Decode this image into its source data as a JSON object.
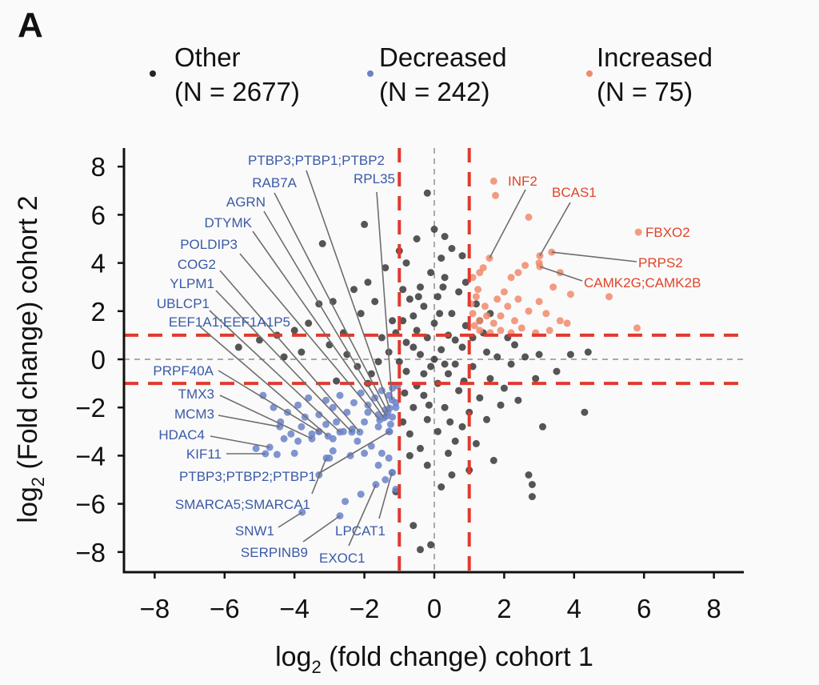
{
  "panel_label": "A",
  "chart_data": {
    "type": "scatter",
    "xlabel_main": "log",
    "xlabel_sub": "2",
    "xlabel_rest": " (fold change) cohort 1",
    "ylabel_main": "log",
    "ylabel_sub": "2",
    "ylabel_rest": " (Fold change) cohort 2",
    "xlim": [
      -9,
      9
    ],
    "ylim": [
      -8.8,
      8.8
    ],
    "xticks": [
      -8,
      -6,
      -4,
      -2,
      0,
      2,
      4,
      6,
      8
    ],
    "yticks": [
      -8,
      -6,
      -4,
      -2,
      0,
      2,
      4,
      6,
      8
    ],
    "xtick_labels": [
      "−8",
      "−6",
      "−4",
      "−2",
      "0",
      "2",
      "4",
      "6",
      "8"
    ],
    "ytick_labels": [
      "−8",
      "−6",
      "−4",
      "−2",
      "0",
      "2",
      "4",
      "6",
      "8"
    ],
    "grid": false,
    "thresholds": {
      "x": [
        -1,
        1
      ],
      "y": [
        -1,
        1
      ],
      "color": "#e03a2e"
    },
    "zero_lines_color": "#aaaaaa",
    "legend_placement": "top",
    "series": [
      {
        "name": "Other",
        "count_label": "(N = 2677)",
        "color": "#262626",
        "points": [
          [
            -0.2,
            6.9
          ],
          [
            -2.0,
            5.6
          ],
          [
            -3.2,
            4.8
          ],
          [
            0,
            5.4
          ],
          [
            0.3,
            5.1
          ],
          [
            -0.5,
            5.0
          ],
          [
            0.5,
            4.6
          ],
          [
            -1.0,
            4.5
          ],
          [
            -0.8,
            4.0
          ],
          [
            0.2,
            4.2
          ],
          [
            0.8,
            4.3
          ],
          [
            -1.4,
            3.8
          ],
          [
            -1.9,
            3.2
          ],
          [
            -2.3,
            2.9
          ],
          [
            -2.9,
            2.4
          ],
          [
            -3.3,
            2.3
          ],
          [
            -3.6,
            1.5
          ],
          [
            -4.0,
            1.2
          ],
          [
            -4.5,
            1.0
          ],
          [
            -5.0,
            0.8
          ],
          [
            -5.6,
            0.5
          ],
          [
            -3.0,
            0.6
          ],
          [
            -2.5,
            0.2
          ],
          [
            -2.2,
            -0.3
          ],
          [
            -1.8,
            -0.6
          ],
          [
            -1.5,
            0.9
          ],
          [
            -1.2,
            1.6
          ],
          [
            -0.7,
            2.5
          ],
          [
            -0.4,
            3.0
          ],
          [
            0.3,
            3.4
          ],
          [
            0.7,
            2.8
          ],
          [
            0.9,
            3.2
          ],
          [
            1.2,
            2.3
          ],
          [
            1.3,
            1.6
          ],
          [
            -0.9,
            2.9
          ],
          [
            -0.6,
            1.8
          ],
          [
            -0.3,
            2.2
          ],
          [
            0.1,
            2.6
          ],
          [
            0.5,
            1.9
          ],
          [
            -1.1,
            1.1
          ],
          [
            -0.8,
            0.7
          ],
          [
            -0.5,
            1.2
          ],
          [
            0.0,
            1.5
          ],
          [
            0.4,
            1.0
          ],
          [
            0.8,
            0.5
          ],
          [
            1.1,
            0.9
          ],
          [
            1.5,
            0.3
          ],
          [
            1.8,
            0.1
          ],
          [
            2.2,
            -0.2
          ],
          [
            2.6,
            0.1
          ],
          [
            3.0,
            0.2
          ],
          [
            3.5,
            -0.5
          ],
          [
            3.9,
            0.2
          ],
          [
            4.4,
            0.3
          ],
          [
            4.3,
            -2.2
          ],
          [
            3.1,
            -2.8
          ],
          [
            2.4,
            -1.7
          ],
          [
            2.0,
            -1.2
          ],
          [
            1.6,
            -0.8
          ],
          [
            1.3,
            -1.6
          ],
          [
            1.0,
            -2.2
          ],
          [
            0.8,
            -2.8
          ],
          [
            0.6,
            -3.4
          ],
          [
            0.4,
            -3.9
          ],
          [
            0.5,
            -4.8
          ],
          [
            0.2,
            -5.3
          ],
          [
            -0.2,
            -4.4
          ],
          [
            -0.4,
            -3.7
          ],
          [
            -0.7,
            -3.1
          ],
          [
            -0.9,
            -2.6
          ],
          [
            -0.6,
            -2.0
          ],
          [
            -0.3,
            -1.5
          ],
          [
            0.1,
            -1.0
          ],
          [
            0.4,
            -0.6
          ],
          [
            -0.1,
            -0.3
          ],
          [
            -0.4,
            0.2
          ],
          [
            0.2,
            0.4
          ],
          [
            0.6,
            -0.2
          ],
          [
            -0.8,
            -0.5
          ],
          [
            -0.5,
            -1.1
          ],
          [
            0.3,
            -2.0
          ],
          [
            0.7,
            -1.3
          ],
          [
            -0.2,
            -2.5
          ],
          [
            0.1,
            -3.0
          ],
          [
            -0.7,
            -4.0
          ],
          [
            1.2,
            -3.5
          ],
          [
            1.5,
            -2.5
          ],
          [
            1.7,
            -4.2
          ],
          [
            2.7,
            -4.8
          ],
          [
            2.8,
            -5.2
          ],
          [
            2.8,
            -5.7
          ],
          [
            -0.6,
            -6.9
          ],
          [
            -0.1,
            -7.7
          ],
          [
            -0.4,
            -7.9
          ],
          [
            -1.1,
            -5.5
          ],
          [
            1.0,
            -4.6
          ],
          [
            -0.9,
            1.6
          ],
          [
            -0.2,
            0.9
          ],
          [
            0.9,
            1.4
          ],
          [
            -1.3,
            0.3
          ],
          [
            -1.6,
            -0.1
          ],
          [
            -2.6,
            1.1
          ],
          [
            -3.8,
            0.3
          ],
          [
            -4.3,
            0.1
          ],
          [
            -2.1,
            1.9
          ],
          [
            -1.7,
            2.4
          ],
          [
            1.4,
            1.1
          ],
          [
            2.3,
            0.6
          ],
          [
            2.9,
            -0.8
          ],
          [
            1.9,
            -1.9
          ],
          [
            0.0,
            0.0
          ],
          [
            0.3,
            -0.2
          ],
          [
            -0.3,
            -0.6
          ],
          [
            0.6,
            0.8
          ],
          [
            -0.6,
            0.5
          ],
          [
            0.15,
            1.9
          ],
          [
            -0.15,
            -1.9
          ],
          [
            0.45,
            -2.6
          ],
          [
            -0.45,
            2.6
          ],
          [
            0.85,
            -0.9
          ],
          [
            -0.85,
            -1.4
          ],
          [
            1.1,
            -0.3
          ],
          [
            -1.0,
            -0.1
          ],
          [
            0.25,
            3.0
          ],
          [
            -0.1,
            3.6
          ],
          [
            1.6,
            1.9
          ],
          [
            -2.8,
            -0.9
          ],
          [
            -1.9,
            -1.0
          ],
          [
            2.1,
            0.9
          ]
        ]
      },
      {
        "name": "Decreased",
        "count_label": "(N = 242)",
        "color": "#6a82c8",
        "points": [
          [
            -1.2,
            -1.2
          ],
          [
            -1.3,
            -1.5
          ],
          [
            -1.1,
            -1.8
          ],
          [
            -1.5,
            -1.3
          ],
          [
            -1.7,
            -1.6
          ],
          [
            -1.4,
            -2.1
          ],
          [
            -1.2,
            -2.4
          ],
          [
            -1.9,
            -1.9
          ],
          [
            -2.1,
            -1.4
          ],
          [
            -2.3,
            -1.8
          ],
          [
            -2.5,
            -2.2
          ],
          [
            -2.0,
            -2.6
          ],
          [
            -1.6,
            -2.8
          ],
          [
            -1.3,
            -3.0
          ],
          [
            -2.7,
            -1.5
          ],
          [
            -2.9,
            -2.0
          ],
          [
            -3.1,
            -1.7
          ],
          [
            -3.3,
            -2.3
          ],
          [
            -3.6,
            -1.6
          ],
          [
            -3.9,
            -1.9
          ],
          [
            -4.2,
            -2.2
          ],
          [
            -4.4,
            -2.6
          ],
          [
            -4.6,
            -2.0
          ],
          [
            -4.9,
            -1.5
          ],
          [
            -3.8,
            -2.8
          ],
          [
            -3.5,
            -3.1
          ],
          [
            -3.3,
            -3.0
          ],
          [
            -2.9,
            -3.3
          ],
          [
            -2.6,
            -3.0
          ],
          [
            -2.2,
            -3.4
          ],
          [
            -1.8,
            -3.6
          ],
          [
            -1.5,
            -3.9
          ],
          [
            -1.3,
            -4.1
          ],
          [
            -1.6,
            -4.4
          ],
          [
            -1.2,
            -4.7
          ],
          [
            -1.4,
            -5.0
          ],
          [
            -1.1,
            -5.4
          ],
          [
            -1.67,
            -5.2
          ],
          [
            -2.1,
            -5.6
          ],
          [
            -3.0,
            -4.1
          ],
          [
            -3.3,
            -4.8
          ],
          [
            -2.0,
            -3.9
          ],
          [
            -2.4,
            -4.0
          ],
          [
            -4.3,
            -3.3
          ],
          [
            -4.71,
            -3.65
          ],
          [
            -4.83,
            -3.92
          ],
          [
            -5.1,
            -3.7
          ],
          [
            -4.5,
            -3.95
          ],
          [
            -4.0,
            -3.9
          ],
          [
            -3.78,
            -6.35
          ],
          [
            -2.7,
            -6.5
          ],
          [
            -1.21,
            -4.7
          ],
          [
            -2.55,
            -5.9
          ],
          [
            -2.9,
            -3.8
          ],
          [
            -3.9,
            -3.4
          ],
          [
            -1.9,
            -2.2
          ],
          [
            -2.8,
            -2.6
          ],
          [
            -3.7,
            -2.4
          ],
          [
            -1.05,
            -1.1
          ],
          [
            -1.1,
            -2.0
          ],
          [
            -1.25,
            -2.7
          ],
          [
            -1.6,
            -2.3
          ],
          [
            -2.35,
            -2.9
          ],
          [
            -3.1,
            -2.7
          ],
          [
            -4.1,
            -3.1
          ],
          [
            -1.28,
            -2.03
          ],
          [
            -1.33,
            -2.19
          ],
          [
            -1.37,
            -2.36
          ],
          [
            -1.44,
            -2.43
          ],
          [
            -1.56,
            -2.52
          ],
          [
            -2.13,
            -3.02
          ],
          [
            -2.36,
            -3.02
          ],
          [
            -2.7,
            -3.02
          ],
          [
            -3.04,
            -3.19
          ],
          [
            -1.21,
            -1.69
          ],
          [
            -3.3,
            -3.0
          ],
          [
            -3.5,
            -3.3
          ],
          [
            -4.42,
            -2.8
          ],
          [
            -1.28,
            -3.0
          ],
          [
            -3.09,
            -4.1
          ]
        ]
      },
      {
        "name": "Increased",
        "count_label": "(N = 75)",
        "color": "#f08a6c",
        "points": [
          [
            1.7,
            7.4
          ],
          [
            1.75,
            6.8
          ],
          [
            2.7,
            5.9
          ],
          [
            1.1,
            3.4
          ],
          [
            2.6,
            3.9
          ],
          [
            3.0,
            4.0
          ],
          [
            3.02,
            4.3
          ],
          [
            3.36,
            4.45
          ],
          [
            3.02,
            3.85
          ],
          [
            3.6,
            3.6
          ],
          [
            3.4,
            3.0
          ],
          [
            3.9,
            2.7
          ],
          [
            5.0,
            2.6
          ],
          [
            5.84,
            5.28
          ],
          [
            5.8,
            1.3
          ],
          [
            1.58,
            4.2
          ],
          [
            1.4,
            3.8
          ],
          [
            1.3,
            3.6
          ],
          [
            2.2,
            3.4
          ],
          [
            2.4,
            3.6
          ],
          [
            1.2,
            2.6
          ],
          [
            1.1,
            1.9
          ],
          [
            1.3,
            1.6
          ],
          [
            1.5,
            1.8
          ],
          [
            1.7,
            1.5
          ],
          [
            1.9,
            1.8
          ],
          [
            2.1,
            2.2
          ],
          [
            2.4,
            2.5
          ],
          [
            2.7,
            2.0
          ],
          [
            3.0,
            2.4
          ],
          [
            3.2,
            1.9
          ],
          [
            3.6,
            1.6
          ],
          [
            3.3,
            1.2
          ],
          [
            2.9,
            1.1
          ],
          [
            2.5,
            1.3
          ],
          [
            2.2,
            1.1
          ],
          [
            1.9,
            1.2
          ],
          [
            1.6,
            1.1
          ],
          [
            1.3,
            1.2
          ],
          [
            1.15,
            1.4
          ],
          [
            1.45,
            2.2
          ],
          [
            1.8,
            2.5
          ],
          [
            2.3,
            1.6
          ],
          [
            2.0,
            2.8
          ],
          [
            3.8,
            1.5
          ],
          [
            1.05,
            2.3
          ],
          [
            1.25,
            2.9
          ]
        ]
      }
    ],
    "annotations": [
      {
        "label": "PTBP3;PTBP1;PTBP2",
        "x": -1.28,
        "y": -2.03,
        "group": "Decreased"
      },
      {
        "label": "RAB7A",
        "x": -1.33,
        "y": -2.19,
        "group": "Decreased"
      },
      {
        "label": "AGRN",
        "x": -1.37,
        "y": -2.36,
        "group": "Decreased"
      },
      {
        "label": "DTYMK",
        "x": -1.44,
        "y": -2.43,
        "group": "Decreased"
      },
      {
        "label": "POLDIP3",
        "x": -1.56,
        "y": -2.52,
        "group": "Decreased"
      },
      {
        "label": "COG2",
        "x": -2.13,
        "y": -3.02,
        "group": "Decreased"
      },
      {
        "label": "YLPM1",
        "x": -2.36,
        "y": -3.02,
        "group": "Decreased"
      },
      {
        "label": "UBLCP1",
        "x": -2.7,
        "y": -3.02,
        "group": "Decreased"
      },
      {
        "label": "EEF1A1;EEF1A1P5",
        "x": -3.04,
        "y": -3.19,
        "group": "Decreased"
      },
      {
        "label": "RPL35",
        "x": -1.21,
        "y": -1.69,
        "group": "Decreased"
      },
      {
        "label": "PRPF40A",
        "x": -3.3,
        "y": -3.0,
        "group": "Decreased"
      },
      {
        "label": "TMX3",
        "x": -3.5,
        "y": -3.3,
        "group": "Decreased"
      },
      {
        "label": "MCM3",
        "x": -4.42,
        "y": -2.8,
        "group": "Decreased"
      },
      {
        "label": "HDAC4",
        "x": -4.71,
        "y": -3.65,
        "group": "Decreased"
      },
      {
        "label": "KIF11",
        "x": -4.83,
        "y": -3.92,
        "group": "Decreased"
      },
      {
        "label": "PTBP3;PTBP2;PTBP1",
        "x": -1.28,
        "y": -3.0,
        "group": "Decreased"
      },
      {
        "label": "SMARCA5;SMARCA1",
        "x": -3.09,
        "y": -4.1,
        "group": "Decreased"
      },
      {
        "label": "SNW1",
        "x": -3.78,
        "y": -6.35,
        "group": "Decreased"
      },
      {
        "label": "SERPINB9",
        "x": -2.7,
        "y": -6.5,
        "group": "Decreased"
      },
      {
        "label": "LPCAT1",
        "x": -1.21,
        "y": -4.7,
        "group": "Decreased"
      },
      {
        "label": "EXOC1",
        "x": -1.67,
        "y": -5.2,
        "group": "Decreased"
      },
      {
        "label": "INF2",
        "x": 1.58,
        "y": 4.2,
        "group": "Increased"
      },
      {
        "label": "BCAS1",
        "x": 3.02,
        "y": 4.3,
        "group": "Increased"
      },
      {
        "label": "FBXO2",
        "x": 5.84,
        "y": 5.28,
        "group": "Increased"
      },
      {
        "label": "PRPS2",
        "x": 3.36,
        "y": 4.45,
        "group": "Increased"
      },
      {
        "label": "CAMK2G;CAMK2B",
        "x": 3.02,
        "y": 3.85,
        "group": "Increased"
      }
    ],
    "label_colors": {
      "Decreased": "#3a5aa6",
      "Increased": "#e0442a"
    }
  }
}
